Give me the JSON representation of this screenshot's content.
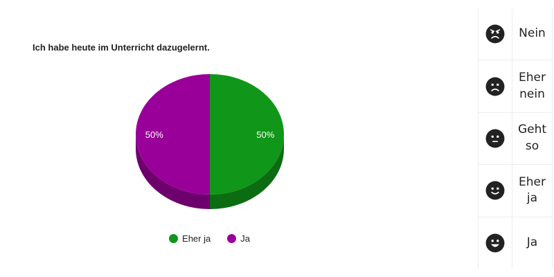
{
  "chart_data": {
    "type": "pie",
    "title": "Ich habe heute im Unterricht dazugelernt.",
    "slices": [
      {
        "label": "Eher ja",
        "value": 50,
        "percent_label": "50%",
        "color": "#109618"
      },
      {
        "label": "Ja",
        "value": 50,
        "percent_label": "50%",
        "color": "#990099"
      }
    ],
    "legend_position": "bottom",
    "style": "3d"
  },
  "scale": [
    {
      "label": "Nein",
      "icon": "angry-face-icon"
    },
    {
      "label": "Eher nein",
      "icon": "sad-face-icon"
    },
    {
      "label": "Geht so",
      "icon": "neutral-face-icon"
    },
    {
      "label": "Eher ja",
      "icon": "slight-smile-face-icon"
    },
    {
      "label": "Ja",
      "icon": "happy-face-icon"
    }
  ]
}
